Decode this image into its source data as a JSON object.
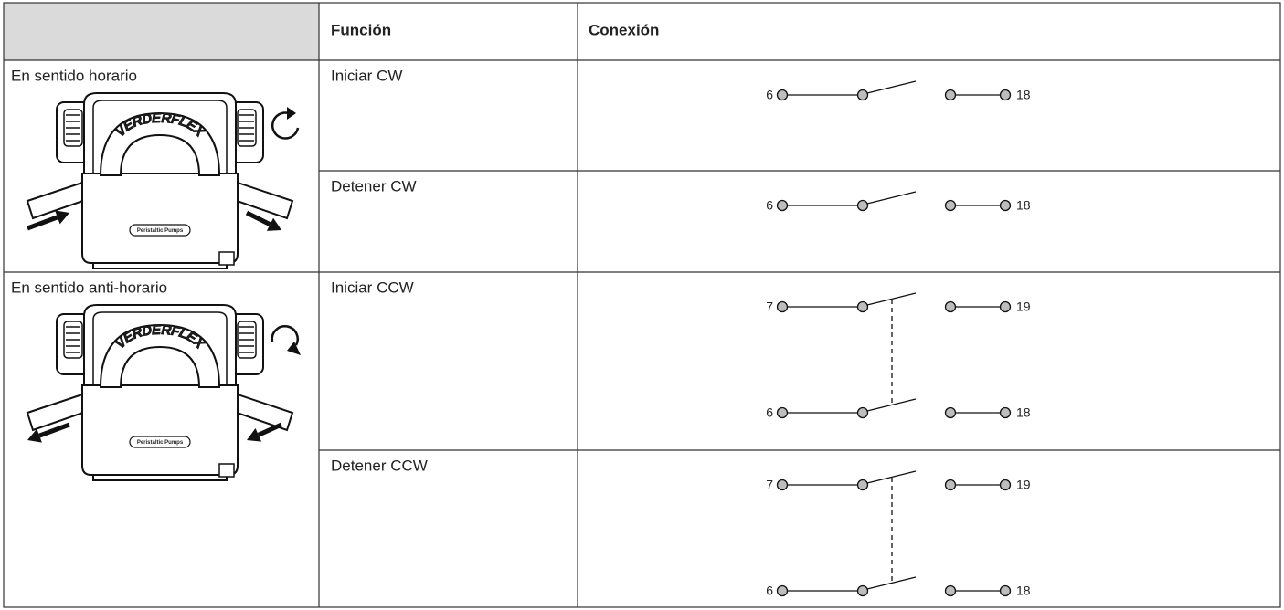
{
  "header": {
    "function": "Función",
    "connection": "Conexión"
  },
  "groups": [
    {
      "label": "En sentido horario",
      "direction": "cw",
      "image": {
        "brand": "VERDERFLEX",
        "model": "Peristaltic Pumps"
      },
      "rows": [
        {
          "function": "Iniciar CW",
          "connections": [
            {
              "from": "6",
              "to": "18"
            }
          ]
        },
        {
          "function": "Detener CW",
          "connections": [
            {
              "from": "6",
              "to": "18"
            }
          ]
        }
      ]
    },
    {
      "label": "En sentido anti-horario",
      "direction": "ccw",
      "image": {
        "brand": "VERDERFLEX",
        "model": "Peristaltic Pumps"
      },
      "rows": [
        {
          "function": "Iniciar CCW",
          "connections": [
            {
              "from": "7",
              "to": "19"
            },
            {
              "from": "6",
              "to": "18"
            }
          ]
        },
        {
          "function": "Detener CCW",
          "connections": [
            {
              "from": "7",
              "to": "19"
            },
            {
              "from": "6",
              "to": "18"
            }
          ]
        }
      ]
    }
  ]
}
